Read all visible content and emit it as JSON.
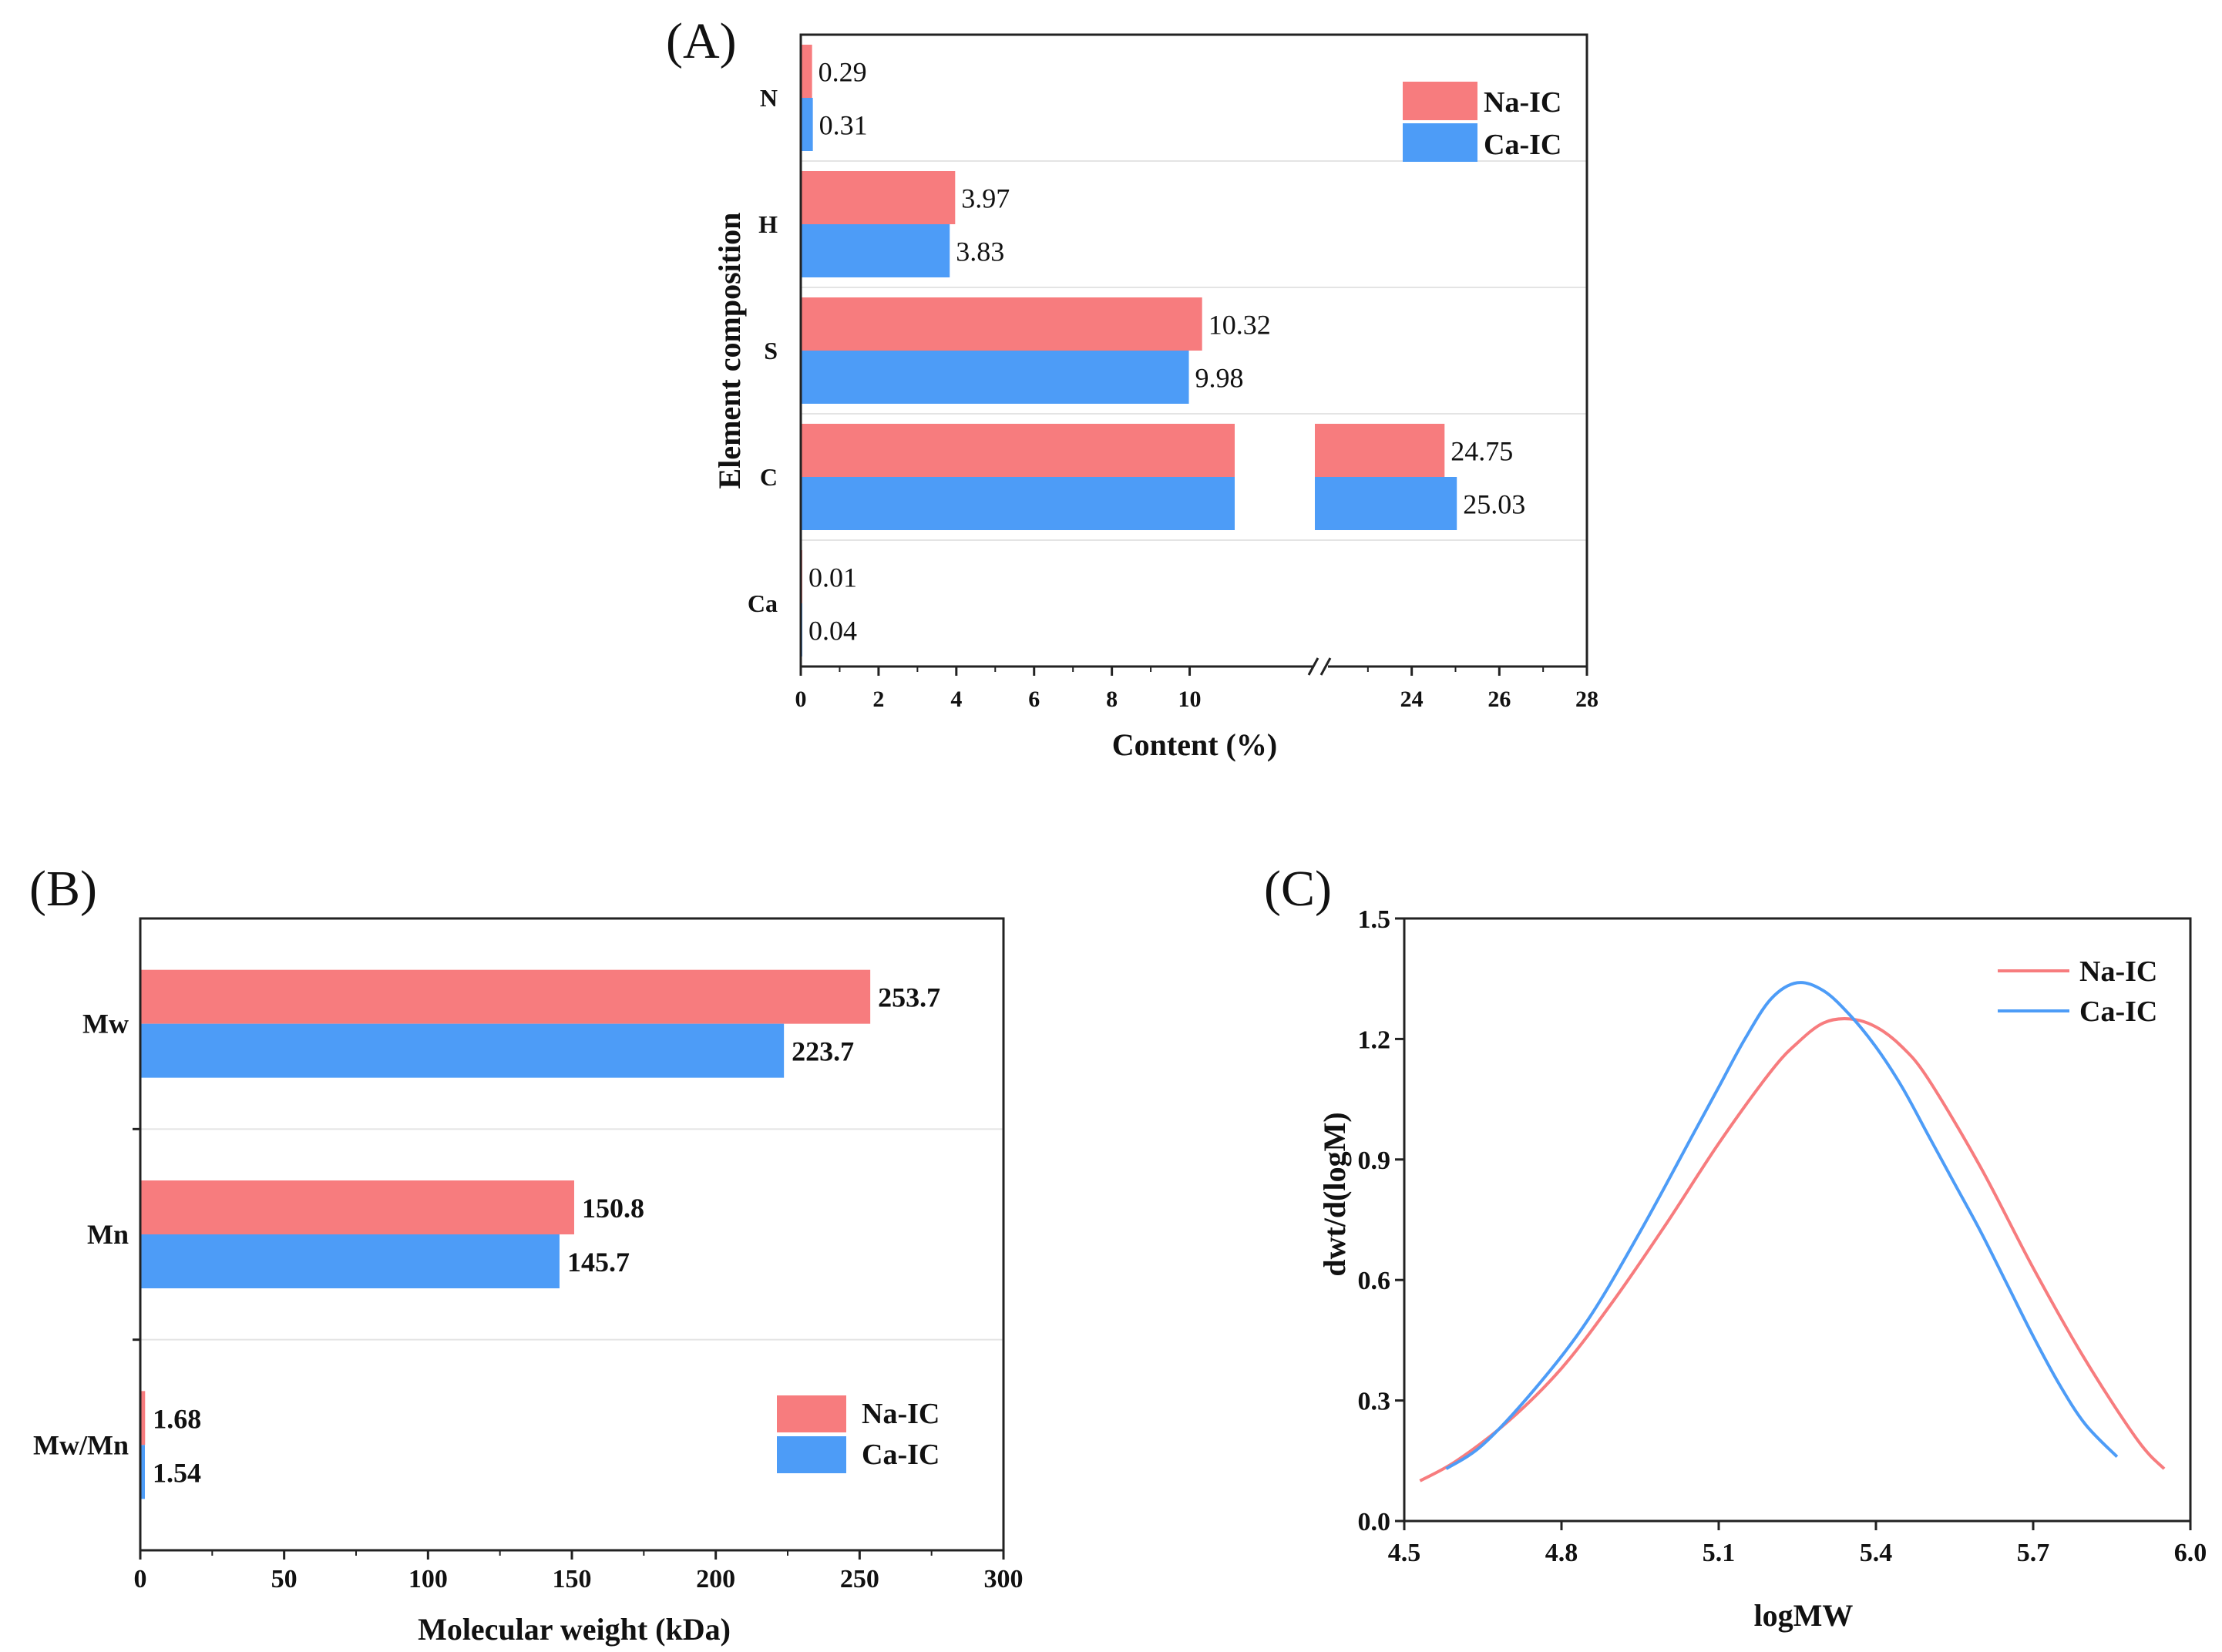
{
  "colors": {
    "na": "#f77c7e",
    "ca": "#4d9cf7",
    "axis": "#222222"
  },
  "chart_data": [
    {
      "id": "A",
      "type": "bar",
      "orientation": "horizontal",
      "panel_label": "(A)",
      "categories": [
        "N",
        "H",
        "S",
        "C",
        "Ca"
      ],
      "series": [
        {
          "name": "Na-IC",
          "values": [
            0.29,
            3.97,
            10.32,
            24.75,
            0.01
          ],
          "labels": [
            "0.29",
            "3.97",
            "10.32",
            "24.75",
            "0.01"
          ]
        },
        {
          "name": "Ca-IC",
          "values": [
            0.31,
            3.83,
            9.98,
            25.03,
            0.04
          ],
          "labels": [
            "0.31",
            "3.83",
            "9.98",
            "25.03",
            "0.04"
          ]
        }
      ],
      "xlabel": "Content (%)",
      "ylabel": "Element composition",
      "xticks": [
        "0",
        "2",
        "4",
        "6",
        "8",
        "10",
        "24",
        "26",
        "28"
      ],
      "axis_break": [
        12,
        22
      ],
      "xlim": [
        0,
        28
      ],
      "legend": "top-right"
    },
    {
      "id": "B",
      "type": "bar",
      "orientation": "horizontal",
      "panel_label": "(B)",
      "categories": [
        "Mw",
        "Mn",
        "Mw/Mn"
      ],
      "series": [
        {
          "name": "Na-IC",
          "values": [
            253.7,
            150.8,
            1.68
          ],
          "labels": [
            "253.7",
            "150.8",
            "1.68"
          ]
        },
        {
          "name": "Ca-IC",
          "values": [
            223.7,
            145.7,
            1.54
          ],
          "labels": [
            "223.7",
            "145.7",
            "1.54"
          ]
        }
      ],
      "xlabel": "Molecular weight (kDa)",
      "xticks": [
        "0",
        "50",
        "100",
        "150",
        "200",
        "250",
        "300"
      ],
      "xlim": [
        0,
        300
      ],
      "legend": "bottom-right"
    },
    {
      "id": "C",
      "type": "line",
      "panel_label": "(C)",
      "xlabel": "logMW",
      "ylabel": "dwt/d(logM)",
      "xlim": [
        4.5,
        6.0
      ],
      "ylim": [
        0,
        1.5
      ],
      "xticks": [
        "4.5",
        "4.8",
        "5.1",
        "5.4",
        "5.7",
        "6.0"
      ],
      "yticks": [
        "0.0",
        "0.3",
        "0.6",
        "0.9",
        "1.2",
        "1.5"
      ],
      "legend": "top-right",
      "series": [
        {
          "name": "Na-IC",
          "x": [
            4.53,
            4.6,
            4.7,
            4.8,
            4.9,
            5.0,
            5.1,
            5.2,
            5.25,
            5.3,
            5.35,
            5.4,
            5.45,
            5.5,
            5.6,
            5.7,
            5.8,
            5.9,
            5.95
          ],
          "y": [
            0.1,
            0.15,
            0.25,
            0.38,
            0.55,
            0.74,
            0.94,
            1.12,
            1.19,
            1.24,
            1.25,
            1.23,
            1.18,
            1.1,
            0.88,
            0.63,
            0.4,
            0.2,
            0.13
          ]
        },
        {
          "name": "Ca-IC",
          "x": [
            4.58,
            4.65,
            4.75,
            4.85,
            4.95,
            5.05,
            5.1,
            5.15,
            5.2,
            5.25,
            5.3,
            5.35,
            5.4,
            5.45,
            5.5,
            5.55,
            5.6,
            5.65,
            5.7,
            5.75,
            5.8,
            5.86
          ],
          "y": [
            0.13,
            0.19,
            0.33,
            0.5,
            0.72,
            0.96,
            1.08,
            1.2,
            1.3,
            1.34,
            1.32,
            1.26,
            1.18,
            1.08,
            0.96,
            0.84,
            0.72,
            0.59,
            0.46,
            0.34,
            0.24,
            0.16
          ]
        }
      ]
    }
  ]
}
